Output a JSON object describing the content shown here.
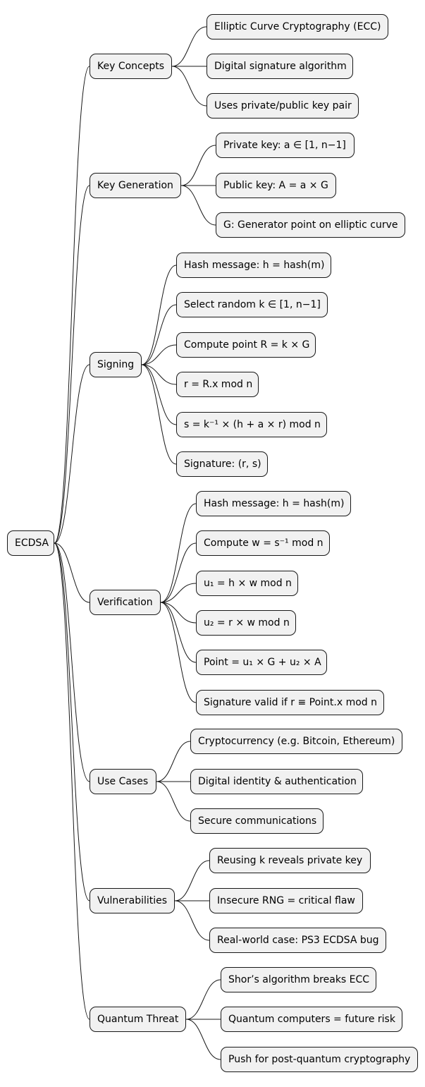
{
  "root": {
    "label": "ECDSA"
  },
  "branches": [
    {
      "label": "Key Concepts",
      "children": [
        "Elliptic Curve Cryptography (ECC)",
        "Digital signature algorithm",
        "Uses private/public key pair"
      ]
    },
    {
      "label": "Key Generation",
      "children": [
        "Private key: a ∈ [1, n−1]",
        "Public key: A = a × G",
        "G: Generator point on elliptic curve"
      ]
    },
    {
      "label": "Signing",
      "children": [
        "Hash message: h = hash(m)",
        "Select random k ∈ [1, n−1]",
        "Compute point R = k × G",
        "r = R.x mod n",
        "s = k⁻¹ × (h + a × r) mod n",
        "Signature: (r, s)"
      ]
    },
    {
      "label": "Verification",
      "children": [
        "Hash message: h = hash(m)",
        "Compute w = s⁻¹ mod n",
        "u₁ = h × w mod n",
        "u₂ = r × w mod n",
        "Point = u₁ × G + u₂ × A",
        "Signature valid if r ≡ Point.x mod n"
      ]
    },
    {
      "label": "Use Cases",
      "children": [
        "Cryptocurrency (e.g. Bitcoin, Ethereum)",
        "Digital identity & authentication",
        "Secure communications"
      ]
    },
    {
      "label": "Vulnerabilities",
      "children": [
        "Reusing k reveals private key",
        "Insecure RNG = critical flaw",
        "Real-world case: PS3 ECDSA bug"
      ]
    },
    {
      "label": "Quantum Threat",
      "children": [
        "Shor’s algorithm breaks ECC",
        "Quantum computers = future risk",
        "Push for post-quantum cryptography"
      ]
    }
  ]
}
